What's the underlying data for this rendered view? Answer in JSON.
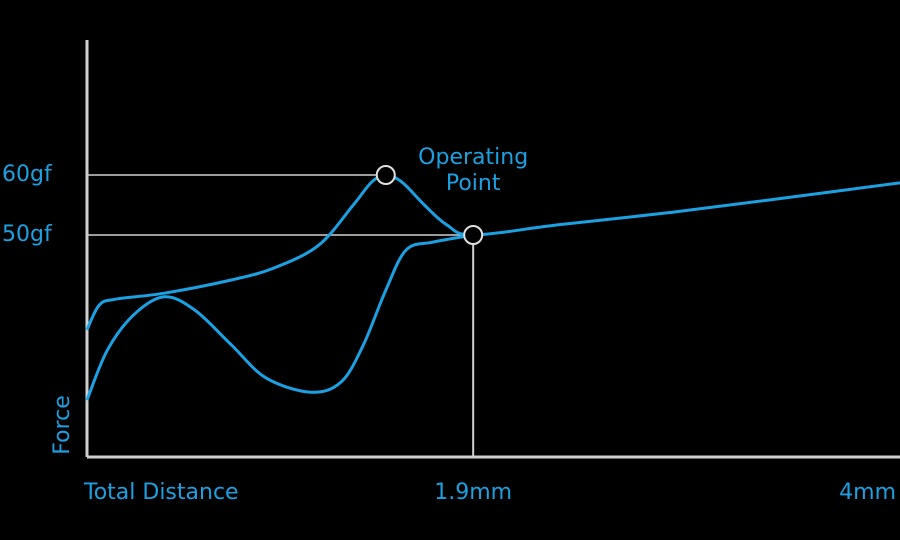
{
  "chart_data": {
    "type": "line",
    "x_label": "Total Distance",
    "y_label": "Force",
    "xlim": [
      0,
      4
    ],
    "ylim": [
      13,
      82.5
    ],
    "xticks": [
      {
        "value": 1.9,
        "label": "1.9mm"
      },
      {
        "value": 4,
        "label": "4mm"
      }
    ],
    "yticks": [
      {
        "value": 60,
        "label": "60gf"
      },
      {
        "value": 50,
        "label": "50gf"
      }
    ],
    "series": [
      {
        "color": "#1ba1e2",
        "x": [
          0,
          0.06,
          0.14,
          0.38,
          0.71,
          0.92,
          1.14,
          1.31,
          1.4,
          1.47,
          1.55,
          1.66,
          1.77,
          1.9,
          2.32,
          2.88,
          3.44,
          4
        ],
        "values": [
          34.2,
          38.3,
          39.3,
          40.3,
          42.5,
          44.5,
          48.3,
          55,
          58.8,
          60,
          58.8,
          55,
          51.7,
          50,
          51.7,
          53.8,
          56.2,
          58.7
        ]
      },
      {
        "color": "#1ba1e2",
        "x": [
          0,
          0.1,
          0.23,
          0.38,
          0.53,
          0.71,
          0.88,
          1.1,
          1.25,
          1.36,
          1.47,
          1.57,
          1.7,
          1.9
        ],
        "values": [
          22.5,
          30.8,
          36.7,
          39.7,
          37.5,
          31.7,
          26.2,
          23.8,
          25.5,
          31.7,
          40.8,
          47.5,
          48.8,
          50
        ]
      }
    ],
    "points": [
      {
        "x": 1.47,
        "y": 60
      },
      {
        "x": 1.9,
        "y": 50,
        "label": "Operating Point"
      }
    ]
  }
}
